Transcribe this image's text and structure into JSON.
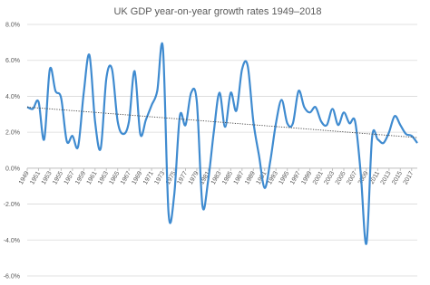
{
  "chart_data": {
    "type": "line",
    "title": "UK GDP year-on-year growth rates 1949–2018",
    "x": [
      1949,
      1950,
      1951,
      1952,
      1953,
      1954,
      1955,
      1956,
      1957,
      1958,
      1959,
      1960,
      1961,
      1962,
      1963,
      1964,
      1965,
      1966,
      1967,
      1968,
      1969,
      1970,
      1971,
      1972,
      1973,
      1974,
      1975,
      1976,
      1977,
      1978,
      1979,
      1980,
      1981,
      1982,
      1983,
      1984,
      1985,
      1986,
      1987,
      1988,
      1989,
      1990,
      1991,
      1992,
      1993,
      1994,
      1995,
      1996,
      1997,
      1998,
      1999,
      2000,
      2001,
      2002,
      2003,
      2004,
      2005,
      2006,
      2007,
      2008,
      2009,
      2010,
      2011,
      2012,
      2013,
      2014,
      2015,
      2016,
      2017,
      2018
    ],
    "series": [
      {
        "color": "#3f8bd0",
        "values": [
          3.4,
          3.3,
          3.7,
          1.6,
          5.5,
          4.3,
          3.9,
          1.5,
          1.8,
          1.2,
          4.2,
          6.3,
          2.6,
          1.1,
          5.0,
          5.5,
          2.6,
          1.9,
          2.6,
          5.4,
          1.9,
          2.7,
          3.5,
          4.3,
          6.7,
          -2.5,
          -1.5,
          2.9,
          2.4,
          4.2,
          3.7,
          -2.1,
          -0.7,
          2.0,
          4.2,
          2.3,
          4.2,
          3.2,
          5.5,
          5.7,
          2.6,
          0.7,
          -1.1,
          0.4,
          2.5,
          3.8,
          2.5,
          2.5,
          4.3,
          3.4,
          3.1,
          3.4,
          2.6,
          2.4,
          3.3,
          2.4,
          3.1,
          2.5,
          2.6,
          -0.3,
          -4.2,
          1.7,
          1.6,
          1.4,
          2.0,
          2.9,
          2.4,
          1.9,
          1.8,
          1.4
        ]
      }
    ],
    "trendline": {
      "x": [
        1949,
        2018
      ],
      "values": [
        3.4,
        1.7
      ],
      "color": "#404040"
    },
    "xlim": [
      1949,
      2018
    ],
    "xticks": [
      1949,
      1951,
      1953,
      1955,
      1957,
      1959,
      1961,
      1963,
      1965,
      1967,
      1969,
      1971,
      1973,
      1975,
      1977,
      1979,
      1981,
      1983,
      1985,
      1987,
      1989,
      1991,
      1993,
      1995,
      1997,
      1999,
      2001,
      2003,
      2005,
      2007,
      2009,
      2011,
      2013,
      2015,
      2017
    ],
    "ylim": [
      -6,
      8
    ],
    "yticks": [
      {
        "value": -6,
        "label": "-6.0%"
      },
      {
        "value": -4,
        "label": "-4.0%"
      },
      {
        "value": -2,
        "label": "-2.0%"
      },
      {
        "value": 0,
        "label": "0.0%"
      },
      {
        "value": 2,
        "label": "2.0%"
      },
      {
        "value": 4,
        "label": "4.0%"
      },
      {
        "value": 6,
        "label": "6.0%"
      },
      {
        "value": 8,
        "label": "8.0%"
      }
    ],
    "grid": true
  }
}
